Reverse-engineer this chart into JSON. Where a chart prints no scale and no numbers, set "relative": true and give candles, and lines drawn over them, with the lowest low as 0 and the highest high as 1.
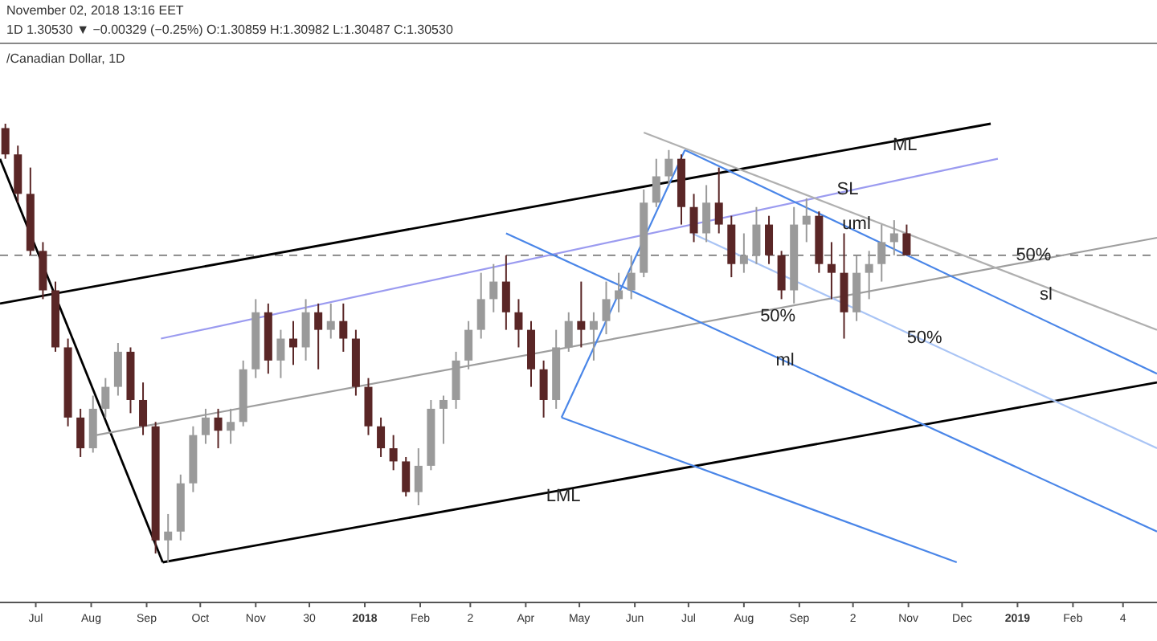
{
  "chart_data": {
    "type": "candlestick",
    "title": "/Canadian Dollar, 1D",
    "subtitle": "November 02, 2018 13:16 EET",
    "relative": true,
    "xlim": [
      "2017-06-11",
      "2019-03-20"
    ],
    "xticks": [
      {
        "value": "2017-07-01",
        "label": "Jul"
      },
      {
        "value": "2017-08-01",
        "label": "Aug"
      },
      {
        "value": "2017-09-01",
        "label": "Sep"
      },
      {
        "value": "2017-10-01",
        "label": "Oct"
      },
      {
        "value": "2017-11-01",
        "label": "Nov"
      },
      {
        "value": "2017-12-01",
        "label": "30"
      },
      {
        "value": "2018-01-01",
        "label": "2018"
      },
      {
        "value": "2018-02-01",
        "label": "Feb"
      },
      {
        "value": "2018-03-01",
        "label": "2"
      },
      {
        "value": "2018-04-01",
        "label": "Apr"
      },
      {
        "value": "2018-05-01",
        "label": "May"
      },
      {
        "value": "2018-06-01",
        "label": "Jun"
      },
      {
        "value": "2018-07-01",
        "label": "Jul"
      },
      {
        "value": "2018-08-01",
        "label": "Aug"
      },
      {
        "value": "2018-09-01",
        "label": "Sep"
      },
      {
        "value": "2018-10-01",
        "label": "2"
      },
      {
        "value": "2018-11-01",
        "label": "Nov"
      },
      {
        "value": "2018-12-01",
        "label": "Dec"
      },
      {
        "value": "2019-01-01",
        "label": "2019"
      },
      {
        "value": "2019-02-01",
        "label": "Feb"
      },
      {
        "value": "2019-03-01",
        "label": "4"
      }
    ],
    "series": [
      {
        "x": [
          "2017-06-14",
          "2017-06-21",
          "2017-06-28",
          "2017-07-05",
          "2017-07-12",
          "2017-07-19",
          "2017-07-26",
          "2017-08-02",
          "2017-08-09",
          "2017-08-16",
          "2017-08-23",
          "2017-08-30",
          "2017-09-06",
          "2017-09-13",
          "2017-09-20",
          "2017-09-27",
          "2017-10-04",
          "2017-10-11",
          "2017-10-18",
          "2017-10-25",
          "2017-11-01",
          "2017-11-08",
          "2017-11-15",
          "2017-11-22",
          "2017-11-29",
          "2017-12-06",
          "2017-12-13",
          "2017-12-20",
          "2017-12-27",
          "2018-01-03",
          "2018-01-10",
          "2018-01-17",
          "2018-01-24",
          "2018-01-31",
          "2018-02-07",
          "2018-02-14",
          "2018-02-21",
          "2018-02-28",
          "2018-03-07",
          "2018-03-14",
          "2018-03-21",
          "2018-03-28",
          "2018-04-04",
          "2018-04-11",
          "2018-04-18",
          "2018-04-25",
          "2018-05-02",
          "2018-05-09",
          "2018-05-16",
          "2018-05-23",
          "2018-05-30",
          "2018-06-06",
          "2018-06-13",
          "2018-06-20",
          "2018-06-27",
          "2018-07-04",
          "2018-07-11",
          "2018-07-18",
          "2018-07-25",
          "2018-08-01",
          "2018-08-08",
          "2018-08-15",
          "2018-08-22",
          "2018-08-29",
          "2018-09-05",
          "2018-09-12",
          "2018-09-19",
          "2018-09-26",
          "2018-10-03",
          "2018-10-10",
          "2018-10-17",
          "2018-10-24",
          "2018-10-31"
        ],
        "ohlc": [
          [
            0.99,
            1.0,
            0.92,
            0.93
          ],
          [
            0.93,
            0.95,
            0.82,
            0.84
          ],
          [
            0.84,
            0.9,
            0.7,
            0.71
          ],
          [
            0.71,
            0.73,
            0.6,
            0.62
          ],
          [
            0.62,
            0.64,
            0.48,
            0.49
          ],
          [
            0.49,
            0.51,
            0.31,
            0.33
          ],
          [
            0.33,
            0.35,
            0.24,
            0.26
          ],
          [
            0.26,
            0.38,
            0.25,
            0.35
          ],
          [
            0.35,
            0.42,
            0.33,
            0.4
          ],
          [
            0.4,
            0.5,
            0.38,
            0.48
          ],
          [
            0.48,
            0.49,
            0.34,
            0.37
          ],
          [
            0.37,
            0.41,
            0.29,
            0.31
          ],
          [
            0.31,
            0.32,
            0.02,
            0.05
          ],
          [
            0.05,
            0.11,
            0,
            0.07
          ],
          [
            0.07,
            0.2,
            0.05,
            0.18
          ],
          [
            0.18,
            0.31,
            0.16,
            0.29
          ],
          [
            0.29,
            0.35,
            0.27,
            0.33
          ],
          [
            0.33,
            0.35,
            0.26,
            0.3
          ],
          [
            0.3,
            0.35,
            0.27,
            0.32
          ],
          [
            0.32,
            0.46,
            0.31,
            0.44
          ],
          [
            0.44,
            0.6,
            0.42,
            0.57
          ],
          [
            0.57,
            0.59,
            0.43,
            0.46
          ],
          [
            0.46,
            0.53,
            0.42,
            0.51
          ],
          [
            0.51,
            0.55,
            0.45,
            0.49
          ],
          [
            0.49,
            0.6,
            0.46,
            0.57
          ],
          [
            0.57,
            0.59,
            0.44,
            0.53
          ],
          [
            0.53,
            0.59,
            0.51,
            0.55
          ],
          [
            0.55,
            0.59,
            0.48,
            0.51
          ],
          [
            0.51,
            0.53,
            0.38,
            0.4
          ],
          [
            0.4,
            0.42,
            0.29,
            0.31
          ],
          [
            0.31,
            0.33,
            0.24,
            0.26
          ],
          [
            0.26,
            0.29,
            0.21,
            0.23
          ],
          [
            0.23,
            0.24,
            0.15,
            0.16
          ],
          [
            0.16,
            0.26,
            0.13,
            0.22
          ],
          [
            0.22,
            0.37,
            0.21,
            0.35
          ],
          [
            0.35,
            0.38,
            0.27,
            0.37
          ],
          [
            0.37,
            0.48,
            0.35,
            0.46
          ],
          [
            0.46,
            0.55,
            0.44,
            0.53
          ],
          [
            0.53,
            0.66,
            0.51,
            0.6
          ],
          [
            0.6,
            0.68,
            0.57,
            0.64
          ],
          [
            0.64,
            0.7,
            0.53,
            0.57
          ],
          [
            0.57,
            0.6,
            0.49,
            0.53
          ],
          [
            0.53,
            0.55,
            0.4,
            0.44
          ],
          [
            0.44,
            0.46,
            0.33,
            0.37
          ],
          [
            0.37,
            0.53,
            0.35,
            0.49
          ],
          [
            0.49,
            0.57,
            0.48,
            0.55
          ],
          [
            0.55,
            0.64,
            0.49,
            0.53
          ],
          [
            0.53,
            0.57,
            0.46,
            0.55
          ],
          [
            0.55,
            0.64,
            0.52,
            0.6
          ],
          [
            0.6,
            0.66,
            0.57,
            0.62
          ],
          [
            0.62,
            0.7,
            0.6,
            0.66
          ],
          [
            0.66,
            0.85,
            0.65,
            0.82
          ],
          [
            0.82,
            0.92,
            0.81,
            0.88
          ],
          [
            0.88,
            0.94,
            0.86,
            0.92
          ],
          [
            0.92,
            0.93,
            0.77,
            0.81
          ],
          [
            0.81,
            0.84,
            0.73,
            0.75
          ],
          [
            0.75,
            0.86,
            0.73,
            0.82
          ],
          [
            0.82,
            0.9,
            0.75,
            0.77
          ],
          [
            0.77,
            0.79,
            0.65,
            0.68
          ],
          [
            0.68,
            0.75,
            0.66,
            0.7
          ],
          [
            0.7,
            0.81,
            0.68,
            0.77
          ],
          [
            0.77,
            0.79,
            0.68,
            0.7
          ],
          [
            0.7,
            0.71,
            0.6,
            0.62
          ],
          [
            0.62,
            0.81,
            0.59,
            0.77
          ],
          [
            0.77,
            0.83,
            0.73,
            0.79
          ],
          [
            0.79,
            0.8,
            0.66,
            0.68
          ],
          [
            0.68,
            0.73,
            0.6,
            0.66
          ],
          [
            0.66,
            0.75,
            0.51,
            0.57
          ],
          [
            0.57,
            0.7,
            0.55,
            0.66
          ],
          [
            0.66,
            0.71,
            0.6,
            0.68
          ],
          [
            0.68,
            0.77,
            0.64,
            0.73
          ],
          [
            0.73,
            0.78,
            0.7,
            0.75
          ],
          [
            0.75,
            0.77,
            0.7,
            0.7
          ]
        ]
      },
      {
        "type": "line",
        "color": "#000000",
        "x": [
          "2017-06-11",
          "2018-12-17"
        ],
        "values": [
          0.59,
          1.0
        ]
      },
      {
        "type": "line",
        "color": "#000000",
        "x": [
          "2017-06-11",
          "2017-09-10"
        ],
        "values": [
          0.92,
          0
        ]
      },
      {
        "type": "line",
        "color": "#000000",
        "x": [
          "2017-09-10",
          "2019-03-20"
        ],
        "values": [
          0,
          0.41
        ]
      },
      {
        "type": "line",
        "color": "#9e9e9e",
        "x": [
          "2017-08-04",
          "2019-03-20"
        ],
        "values": [
          0.29,
          0.74
        ]
      },
      {
        "type": "line",
        "color": "#9b9bf0",
        "x": [
          "2017-09-09",
          "2018-12-21"
        ],
        "values": [
          0.51,
          0.92
        ]
      },
      {
        "type": "line",
        "color": "#4a86e8",
        "x": [
          "2018-04-21",
          "2018-06-29"
        ],
        "values": [
          0.33,
          0.94
        ]
      },
      {
        "type": "line",
        "color": "#4a86e8",
        "x": [
          "2018-03-21",
          "2019-03-20"
        ],
        "values": [
          0.75,
          0.07
        ]
      },
      {
        "type": "line",
        "color": "#4a86e8",
        "x": [
          "2018-06-29",
          "2019-03-20"
        ],
        "values": [
          0.94,
          0.43
        ]
      },
      {
        "type": "line",
        "color": "#b0b0b0",
        "x": [
          "2018-06-06",
          "2019-03-20"
        ],
        "values": [
          0.98,
          0.53
        ]
      },
      {
        "type": "line",
        "color": "#4a86e8",
        "x": [
          "2018-04-21",
          "2018-11-28"
        ],
        "values": [
          0.33,
          0
        ]
      },
      {
        "type": "line",
        "color": "#a9c4f5",
        "x": [
          "2018-07-03",
          "2019-03-20"
        ],
        "values": [
          0.75,
          0.26
        ]
      }
    ],
    "ref_lines": [
      {
        "axis": "y",
        "value": 0.7,
        "color": "#666666",
        "line_style": "dashed"
      }
    ],
    "annotations": [
      "1D 1.30530 ▼ −0.00329 (−0.25%) O:1.30859 H:1.30982 L:1.30487 C:1.30530",
      {
        "text": "ML",
        "x": "2018-10-30",
        "y": 0.95
      },
      {
        "text": "SL",
        "x": "2018-09-28",
        "y": 0.85
      },
      {
        "text": "uml",
        "x": "2018-10-03",
        "y": 0.77
      },
      {
        "text": "50%",
        "x": "2019-01-10",
        "y": 0.7
      },
      {
        "text": "sl",
        "x": "2019-01-17",
        "y": 0.61
      },
      {
        "text": "50%",
        "x": "2018-08-20",
        "y": 0.56
      },
      {
        "text": "50%",
        "x": "2018-11-10",
        "y": 0.51
      },
      {
        "text": "ml",
        "x": "2018-08-24",
        "y": 0.46
      },
      {
        "text": "LML",
        "x": "2018-04-22",
        "y": 0.15
      }
    ]
  }
}
